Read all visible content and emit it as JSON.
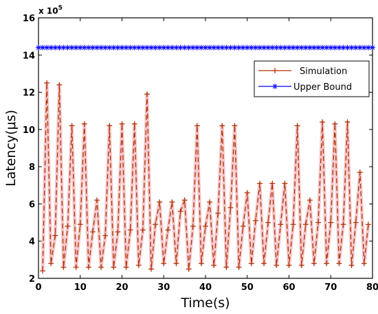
{
  "chart_data": {
    "type": "line",
    "xlabel": "Time(s)",
    "ylabel": "Latency(μs)",
    "xlim": [
      0,
      80
    ],
    "ylim": [
      2,
      16
    ],
    "y_multiplier_label": "x 10",
    "y_multiplier_exponent": "5",
    "y_scale_factor": 100000,
    "xticks": [
      "0",
      "10",
      "20",
      "30",
      "40",
      "50",
      "60",
      "70",
      "80"
    ],
    "yticks": [
      "2",
      "4",
      "6",
      "8",
      "10",
      "12",
      "14",
      "16"
    ],
    "grid": false,
    "legend_position": "top-right",
    "series": [
      {
        "name": "Simulation",
        "color": "#b03000",
        "style": "dashed",
        "marker": "plus",
        "x": [
          1,
          2,
          3,
          4,
          5,
          6,
          7,
          8,
          9,
          10,
          11,
          12,
          13,
          14,
          15,
          16,
          17,
          18,
          19,
          20,
          21,
          22,
          23,
          24,
          25,
          26,
          27,
          28,
          29,
          30,
          31,
          32,
          33,
          34,
          35,
          36,
          37,
          38,
          39,
          40,
          41,
          42,
          43,
          44,
          45,
          46,
          47,
          48,
          49,
          50,
          51,
          52,
          53,
          54,
          55,
          56,
          57,
          58,
          59,
          60,
          61,
          62,
          63,
          64,
          65,
          66,
          67,
          68,
          69,
          70,
          71,
          72,
          73,
          74,
          75,
          76,
          77,
          78,
          79
        ],
        "y": [
          2.4,
          12.5,
          2.8,
          4.3,
          12.4,
          2.6,
          4.8,
          10.2,
          2.6,
          4.9,
          10.3,
          2.6,
          4.5,
          6.2,
          2.6,
          4.3,
          10.2,
          2.6,
          4.5,
          10.3,
          2.6,
          4.6,
          10.3,
          2.7,
          4.6,
          11.9,
          2.5,
          4.9,
          6.1,
          2.8,
          4.6,
          6.1,
          2.8,
          5.6,
          6.2,
          2.5,
          4.8,
          10.2,
          2.8,
          4.8,
          6.1,
          2.7,
          5.5,
          10.2,
          2.6,
          5.8,
          10.2,
          2.6,
          4.8,
          6.6,
          2.8,
          5.1,
          7.1,
          2.8,
          5.0,
          7.1,
          2.7,
          4.9,
          7.1,
          2.7,
          4.9,
          10.2,
          2.7,
          4.9,
          6.2,
          2.8,
          5.0,
          10.4,
          2.8,
          5.0,
          10.3,
          2.8,
          4.9,
          10.4,
          2.7,
          5.0,
          7.7,
          2.8,
          4.9
        ]
      },
      {
        "name": "Upper Bound",
        "color": "#0000ff",
        "style": "solid",
        "marker": "star",
        "x_start": 0,
        "x_end": 80,
        "x_step": 1,
        "y_value": 14.4
      }
    ]
  }
}
